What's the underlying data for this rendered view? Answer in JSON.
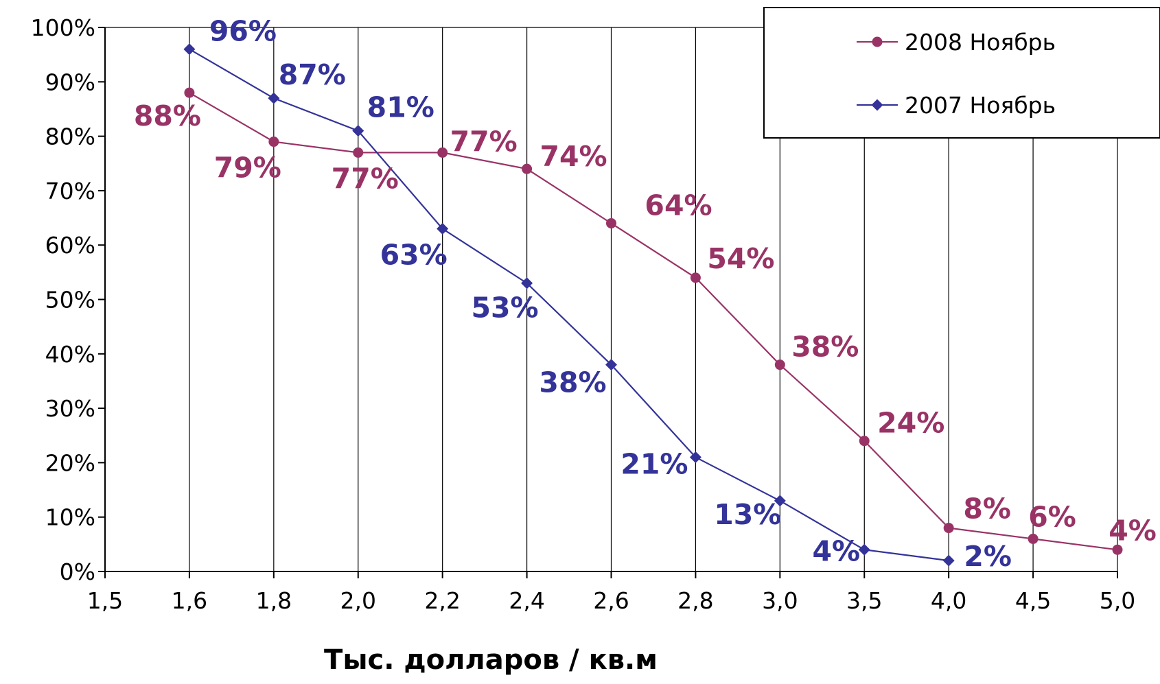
{
  "chart_data": {
    "type": "line",
    "title": "",
    "xlabel": "Тыс. долларов / кв.м",
    "ylabel": "",
    "categories": [
      "1,5",
      "1,6",
      "1,8",
      "2,0",
      "2,2",
      "2,4",
      "2,6",
      "2,8",
      "3,0",
      "3,5",
      "4,0",
      "4,5",
      "5,0"
    ],
    "yticks": [
      "0%",
      "10%",
      "20%",
      "30%",
      "40%",
      "50%",
      "60%",
      "70%",
      "80%",
      "90%",
      "100%"
    ],
    "ylim": [
      0,
      100
    ],
    "grid": "vertical",
    "legend_position": "top-right",
    "series": [
      {
        "name": "2008 Ноябрь",
        "color": "#993366",
        "marker": "circle",
        "values": [
          null,
          88,
          79,
          77,
          77,
          74,
          64,
          54,
          38,
          24,
          8,
          6,
          4
        ],
        "labels": [
          "",
          "88%",
          "79%",
          "77%",
          "77%",
          "74%",
          "64%",
          "54%",
          "38%",
          "24%",
          "8%",
          "6%",
          "4%"
        ]
      },
      {
        "name": "2007 Ноябрь",
        "color": "#333399",
        "marker": "diamond",
        "values": [
          null,
          96,
          87,
          81,
          63,
          53,
          38,
          21,
          13,
          4,
          2,
          null,
          null
        ],
        "labels": [
          "",
          "96%",
          "87%",
          "81%",
          "63%",
          "53%",
          "38%",
          "21%",
          "13%",
          "4%",
          "2%",
          "",
          ""
        ]
      }
    ]
  }
}
